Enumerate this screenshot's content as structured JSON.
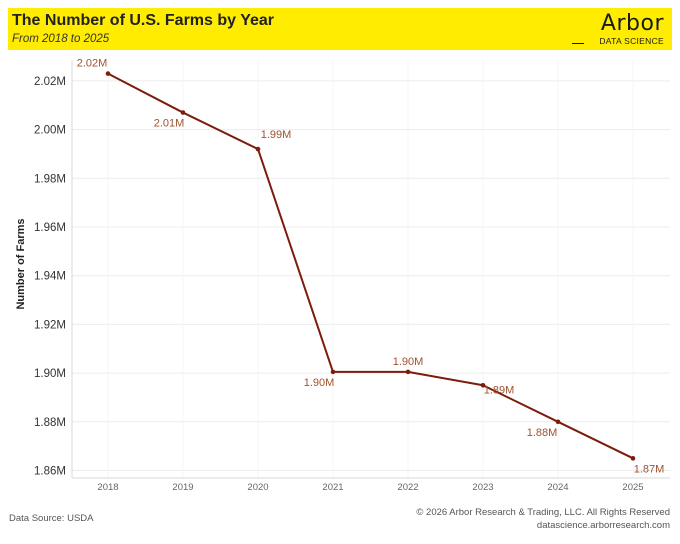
{
  "header": {
    "title": "The Number of U.S. Farms by Year",
    "subtitle": "From 2018 to 2025",
    "logo_word": "Arbor",
    "logo_sub": "DATA SCIENCE"
  },
  "footer": {
    "source": "Data Source: USDA",
    "copyright": "© 2026 Arbor Research & Trading, LLC. All Rights Reserved",
    "website": "datascience.arborresearch.com"
  },
  "colors": {
    "banner": "#ffec00",
    "line": "#7b1c0c",
    "label": "#a0522d",
    "grid": "#ececec"
  },
  "chart_data": {
    "type": "line",
    "title": "The Number of U.S. Farms by Year",
    "subtitle": "From 2018 to 2025",
    "xlabel": "",
    "ylabel": "Number of Farms",
    "x": [
      "2018",
      "2019",
      "2020",
      "2021",
      "2022",
      "2023",
      "2024",
      "2025"
    ],
    "values": [
      2.023,
      2.007,
      1.992,
      1.9005,
      1.9005,
      1.895,
      1.88,
      1.865
    ],
    "data_labels": [
      "2.02M",
      "2.01M",
      "1.99M",
      "1.90M",
      "1.90M",
      "1.89M",
      "1.88M",
      "1.87M"
    ],
    "ylim": [
      1.86,
      2.025
    ],
    "yticks": [
      1.86,
      1.88,
      1.9,
      1.92,
      1.94,
      1.96,
      1.98,
      2.0,
      2.02
    ],
    "ytick_labels": [
      "1.86M",
      "1.88M",
      "1.90M",
      "1.92M",
      "1.94M",
      "1.96M",
      "1.98M",
      "2.00M",
      "2.02M"
    ],
    "grid": true
  }
}
